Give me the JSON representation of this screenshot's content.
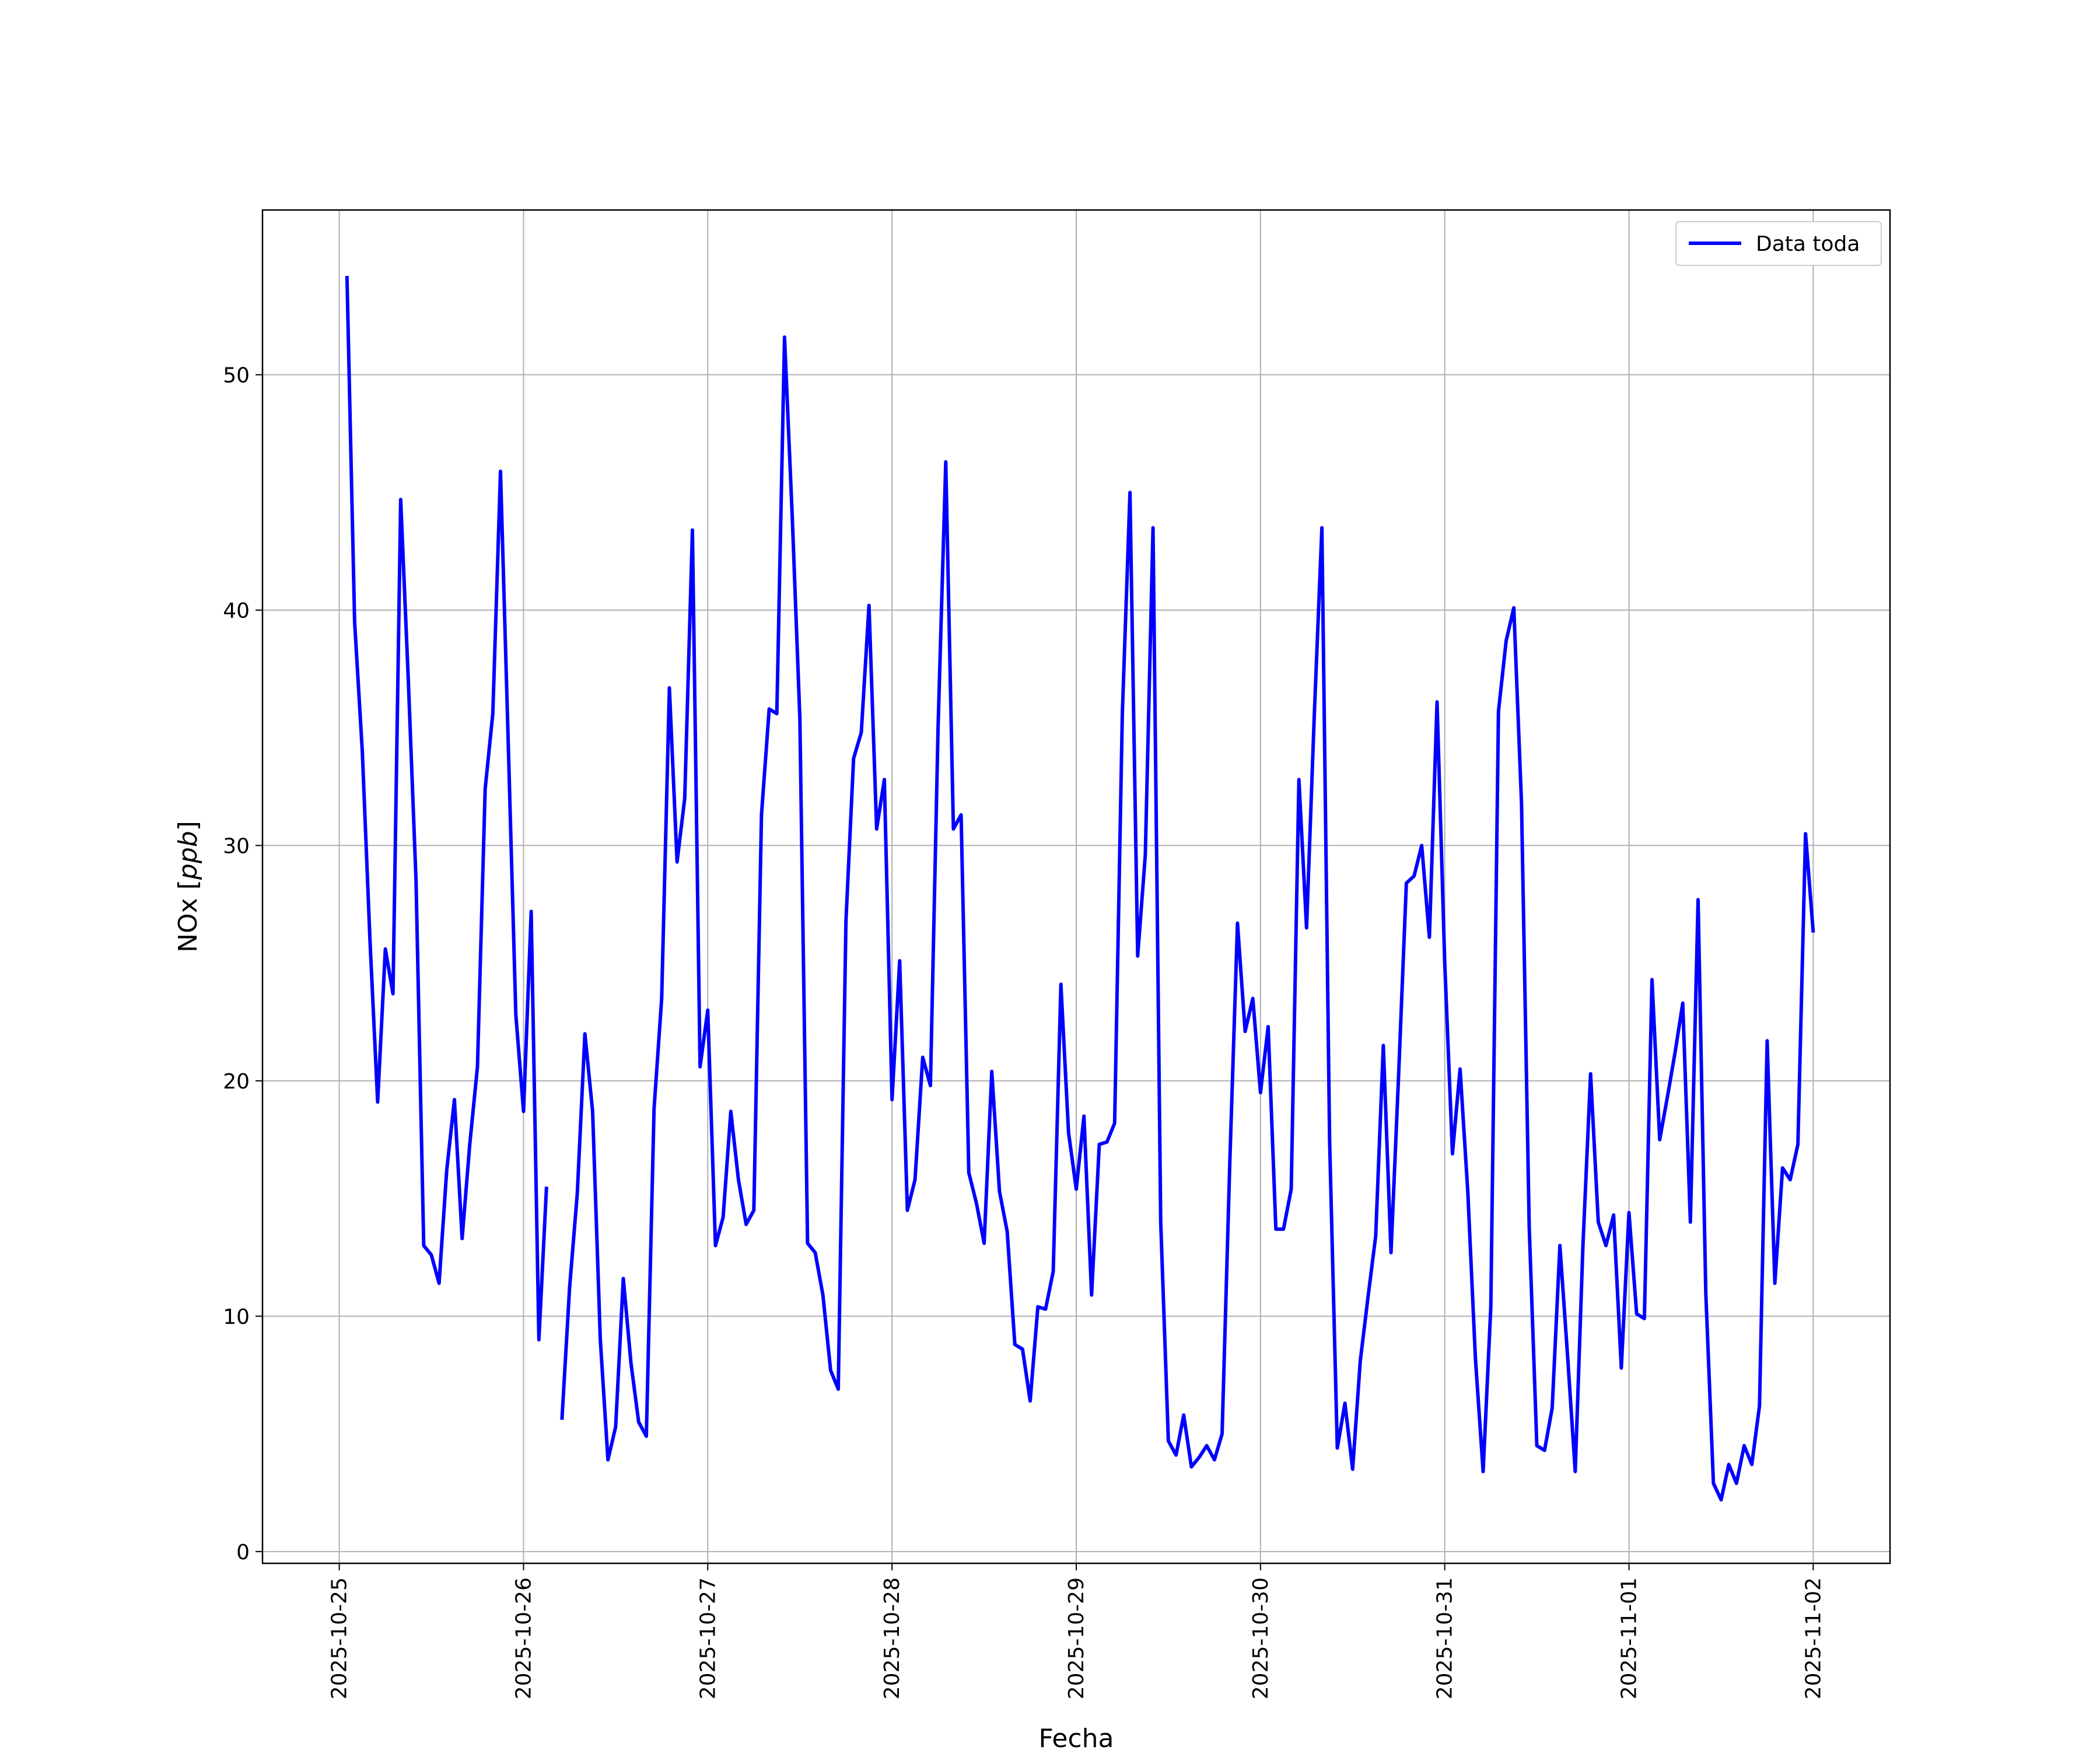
{
  "chart_data": {
    "type": "line",
    "xlabel": "Fecha",
    "ylabel": "NOx [ppb]",
    "ylabel_main": "NOx ",
    "ylabel_unit": "ppb",
    "xlim": [
      "2025-10-24T14:00",
      "2025-11-02T10:00"
    ],
    "ylim": [
      -0.5,
      57
    ],
    "x_ticks": [
      "2025-10-25",
      "2025-10-26",
      "2025-10-27",
      "2025-10-28",
      "2025-10-29",
      "2025-10-30",
      "2025-10-31",
      "2025-11-01",
      "2025-11-02"
    ],
    "y_ticks": [
      0,
      10,
      20,
      30,
      40,
      50
    ],
    "grid": true,
    "legend": "top-right",
    "series": [
      {
        "name": "Data toda",
        "color": "#0000ff",
        "points": [
          [
            "2025-10-25T01:00",
            54.2
          ],
          [
            "2025-10-25T02:00",
            39.5
          ],
          [
            "2025-10-25T03:00",
            34.0
          ],
          [
            "2025-10-25T04:00",
            26.0
          ],
          [
            "2025-10-25T05:00",
            19.1
          ],
          [
            "2025-10-25T06:00",
            25.6
          ],
          [
            "2025-10-25T07:00",
            23.7
          ],
          [
            "2025-10-25T08:00",
            44.7
          ],
          [
            "2025-10-25T09:00",
            37.0
          ],
          [
            "2025-10-25T10:00",
            28.5
          ],
          [
            "2025-10-25T11:00",
            13.0
          ],
          [
            "2025-10-25T12:00",
            12.6
          ],
          [
            "2025-10-25T13:00",
            11.4
          ],
          [
            "2025-10-25T14:00",
            16.2
          ],
          [
            "2025-10-25T15:00",
            19.2
          ],
          [
            "2025-10-25T16:00",
            13.3
          ],
          [
            "2025-10-25T17:00",
            17.3
          ],
          [
            "2025-10-25T18:00",
            20.6
          ],
          [
            "2025-10-25T19:00",
            32.4
          ],
          [
            "2025-10-25T20:00",
            35.6
          ],
          [
            "2025-10-25T21:00",
            45.9
          ],
          [
            "2025-10-25T22:00",
            34.5
          ],
          [
            "2025-10-25T23:00",
            22.8
          ],
          [
            "2025-10-26T00:00",
            18.7
          ],
          [
            "2025-10-26T01:00",
            27.2
          ],
          [
            "2025-10-26T02:00",
            9.0
          ],
          [
            "2025-10-26T03:00",
            15.5
          ],
          null,
          [
            "2025-10-26T05:00",
            5.6
          ],
          [
            "2025-10-26T06:00",
            11.2
          ],
          [
            "2025-10-26T07:00",
            15.2
          ],
          [
            "2025-10-26T08:00",
            22.0
          ],
          [
            "2025-10-26T09:00",
            18.7
          ],
          [
            "2025-10-26T10:00",
            9.0
          ],
          [
            "2025-10-26T11:00",
            3.9
          ],
          [
            "2025-10-26T12:00",
            5.3
          ],
          [
            "2025-10-26T13:00",
            11.6
          ],
          [
            "2025-10-26T14:00",
            8.0
          ],
          [
            "2025-10-26T15:00",
            5.5
          ],
          [
            "2025-10-26T16:00",
            4.9
          ],
          [
            "2025-10-26T17:00",
            18.8
          ],
          [
            "2025-10-26T18:00",
            23.5
          ],
          [
            "2025-10-26T19:00",
            36.7
          ],
          [
            "2025-10-26T20:00",
            29.3
          ],
          [
            "2025-10-26T21:00",
            32.0
          ],
          [
            "2025-10-26T22:00",
            43.4
          ],
          [
            "2025-10-26T23:00",
            20.6
          ],
          [
            "2025-10-27T00:00",
            23.0
          ],
          [
            "2025-10-27T01:00",
            13.0
          ],
          [
            "2025-10-27T02:00",
            14.2
          ],
          [
            "2025-10-27T03:00",
            18.7
          ],
          [
            "2025-10-27T04:00",
            15.8
          ],
          [
            "2025-10-27T05:00",
            13.9
          ],
          [
            "2025-10-27T06:00",
            14.5
          ],
          [
            "2025-10-27T07:00",
            31.3
          ],
          [
            "2025-10-27T08:00",
            35.8
          ],
          [
            "2025-10-27T09:00",
            35.6
          ],
          [
            "2025-10-27T10:00",
            51.6
          ],
          [
            "2025-10-27T11:00",
            44.0
          ],
          [
            "2025-10-27T12:00",
            35.4
          ],
          [
            "2025-10-27T13:00",
            13.1
          ],
          [
            "2025-10-27T14:00",
            12.7
          ],
          [
            "2025-10-27T15:00",
            10.9
          ],
          [
            "2025-10-27T16:00",
            7.7
          ],
          [
            "2025-10-27T17:00",
            6.9
          ],
          [
            "2025-10-27T18:00",
            26.8
          ],
          [
            "2025-10-27T19:00",
            33.7
          ],
          [
            "2025-10-27T20:00",
            34.8
          ],
          [
            "2025-10-27T21:00",
            40.2
          ],
          [
            "2025-10-27T22:00",
            30.7
          ],
          [
            "2025-10-27T23:00",
            32.8
          ],
          [
            "2025-10-28T00:00",
            19.2
          ],
          [
            "2025-10-28T01:00",
            25.1
          ],
          [
            "2025-10-28T02:00",
            14.5
          ],
          [
            "2025-10-28T03:00",
            15.8
          ],
          [
            "2025-10-28T04:00",
            21.0
          ],
          [
            "2025-10-28T05:00",
            19.8
          ],
          [
            "2025-10-28T06:00",
            35.0
          ],
          [
            "2025-10-28T07:00",
            46.3
          ],
          [
            "2025-10-28T08:00",
            30.7
          ],
          [
            "2025-10-28T09:00",
            31.3
          ],
          [
            "2025-10-28T10:00",
            16.1
          ],
          [
            "2025-10-28T11:00",
            14.8
          ],
          [
            "2025-10-28T12:00",
            13.1
          ],
          [
            "2025-10-28T13:00",
            20.4
          ],
          [
            "2025-10-28T14:00",
            15.3
          ],
          [
            "2025-10-28T15:00",
            13.6
          ],
          [
            "2025-10-28T16:00",
            8.8
          ],
          [
            "2025-10-28T17:00",
            8.6
          ],
          [
            "2025-10-28T18:00",
            6.4
          ],
          [
            "2025-10-28T19:00",
            10.4
          ],
          [
            "2025-10-28T20:00",
            10.3
          ],
          [
            "2025-10-28T21:00",
            11.9
          ],
          [
            "2025-10-28T22:00",
            24.1
          ],
          [
            "2025-10-28T23:00",
            17.8
          ],
          [
            "2025-10-29T00:00",
            15.4
          ],
          [
            "2025-10-29T01:00",
            18.5
          ],
          [
            "2025-10-29T02:00",
            10.9
          ],
          [
            "2025-10-29T03:00",
            17.3
          ],
          [
            "2025-10-29T04:00",
            17.4
          ],
          [
            "2025-10-29T05:00",
            18.2
          ],
          [
            "2025-10-29T06:00",
            35.6
          ],
          [
            "2025-10-29T07:00",
            45.0
          ],
          [
            "2025-10-29T08:00",
            25.3
          ],
          [
            "2025-10-29T09:00",
            29.6
          ],
          [
            "2025-10-29T10:00",
            43.5
          ],
          [
            "2025-10-29T11:00",
            14.0
          ],
          [
            "2025-10-29T12:00",
            4.7
          ],
          [
            "2025-10-29T13:00",
            4.1
          ],
          [
            "2025-10-29T14:00",
            5.8
          ],
          [
            "2025-10-29T15:00",
            3.6
          ],
          [
            "2025-10-29T16:00",
            4.0
          ],
          [
            "2025-10-29T17:00",
            4.5
          ],
          [
            "2025-10-29T18:00",
            3.9
          ],
          [
            "2025-10-29T19:00",
            5.0
          ],
          [
            "2025-10-29T20:00",
            16.5
          ],
          [
            "2025-10-29T21:00",
            26.7
          ],
          [
            "2025-10-29T22:00",
            22.1
          ],
          [
            "2025-10-29T23:00",
            23.5
          ],
          [
            "2025-10-30T00:00",
            19.5
          ],
          [
            "2025-10-30T01:00",
            22.3
          ],
          [
            "2025-10-30T02:00",
            13.7
          ],
          [
            "2025-10-30T03:00",
            13.7
          ],
          [
            "2025-10-30T04:00",
            15.4
          ],
          [
            "2025-10-30T05:00",
            32.8
          ],
          [
            "2025-10-30T06:00",
            26.5
          ],
          [
            "2025-10-30T07:00",
            35.5
          ],
          [
            "2025-10-30T08:00",
            43.5
          ],
          [
            "2025-10-30T09:00",
            17.5
          ],
          [
            "2025-10-30T10:00",
            4.4
          ],
          [
            "2025-10-30T11:00",
            6.3
          ],
          [
            "2025-10-30T12:00",
            3.5
          ],
          [
            "2025-10-30T13:00",
            8.1
          ],
          [
            "2025-10-30T14:00",
            10.8
          ],
          [
            "2025-10-30T15:00",
            13.4
          ],
          [
            "2025-10-30T16:00",
            21.5
          ],
          [
            "2025-10-30T17:00",
            12.7
          ],
          [
            "2025-10-30T18:00",
            20.3
          ],
          [
            "2025-10-30T19:00",
            28.4
          ],
          [
            "2025-10-30T20:00",
            28.7
          ],
          [
            "2025-10-30T21:00",
            30.0
          ],
          [
            "2025-10-30T22:00",
            26.1
          ],
          [
            "2025-10-30T23:00",
            36.1
          ],
          [
            "2025-10-31T00:00",
            25.0
          ],
          [
            "2025-10-31T01:00",
            16.9
          ],
          [
            "2025-10-31T02:00",
            20.5
          ],
          [
            "2025-10-31T03:00",
            15.3
          ],
          [
            "2025-10-31T04:00",
            8.2
          ],
          [
            "2025-10-31T05:00",
            3.4
          ],
          [
            "2025-10-31T06:00",
            10.4
          ],
          [
            "2025-10-31T07:00",
            35.7
          ],
          [
            "2025-10-31T08:00",
            38.7
          ],
          [
            "2025-10-31T09:00",
            40.1
          ],
          [
            "2025-10-31T10:00",
            31.8
          ],
          [
            "2025-10-31T11:00",
            13.8
          ],
          [
            "2025-10-31T12:00",
            4.5
          ],
          [
            "2025-10-31T13:00",
            4.3
          ],
          [
            "2025-10-31T14:00",
            6.1
          ],
          [
            "2025-10-31T15:00",
            13.0
          ],
          [
            "2025-10-31T16:00",
            8.3
          ],
          [
            "2025-10-31T17:00",
            3.4
          ],
          [
            "2025-10-31T18:00",
            13.0
          ],
          [
            "2025-10-31T19:00",
            20.3
          ],
          [
            "2025-10-31T20:00",
            14.0
          ],
          [
            "2025-10-31T21:00",
            13.0
          ],
          [
            "2025-10-31T22:00",
            14.3
          ],
          [
            "2025-10-31T23:00",
            7.8
          ],
          [
            "2025-11-01T00:00",
            14.4
          ],
          [
            "2025-11-01T01:00",
            10.1
          ],
          [
            "2025-11-01T02:00",
            9.9
          ],
          [
            "2025-11-01T03:00",
            24.3
          ],
          [
            "2025-11-01T04:00",
            17.5
          ],
          [
            "2025-11-01T05:00",
            19.3
          ],
          [
            "2025-11-01T06:00",
            21.2
          ],
          [
            "2025-11-01T07:00",
            23.3
          ],
          [
            "2025-11-01T08:00",
            14.0
          ],
          [
            "2025-11-01T09:00",
            27.7
          ],
          [
            "2025-11-01T10:00",
            11.0
          ],
          [
            "2025-11-01T11:00",
            2.9
          ],
          [
            "2025-11-01T12:00",
            2.2
          ],
          [
            "2025-11-01T13:00",
            3.7
          ],
          [
            "2025-11-01T14:00",
            2.9
          ],
          [
            "2025-11-01T15:00",
            4.5
          ],
          [
            "2025-11-01T16:00",
            3.7
          ],
          [
            "2025-11-01T17:00",
            6.2
          ],
          [
            "2025-11-01T18:00",
            21.7
          ],
          [
            "2025-11-01T19:00",
            11.4
          ],
          [
            "2025-11-01T20:00",
            16.3
          ],
          [
            "2025-11-01T21:00",
            15.8
          ],
          [
            "2025-11-01T22:00",
            17.3
          ],
          [
            "2025-11-01T23:00",
            30.5
          ],
          [
            "2025-11-02T00:00",
            26.3
          ]
        ]
      }
    ]
  }
}
